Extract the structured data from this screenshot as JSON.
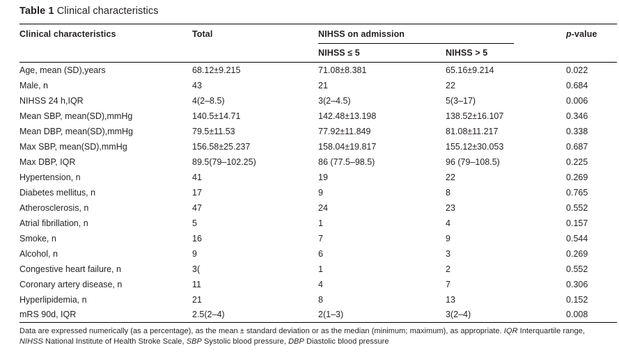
{
  "title": {
    "bold": "Table 1",
    "rest": "Clinical characteristics"
  },
  "header": {
    "col_characteristics": "Clinical characteristics",
    "col_total": "Total",
    "col_nihss_group": "NIHSS on admission",
    "col_nihss_le5": "NIHSS ≤ 5",
    "col_nihss_gt5": "NIHSS > 5",
    "col_p_italic": "p",
    "col_p_rest": "-value"
  },
  "table": {
    "rows": [
      {
        "label": "Age, mean (SD),years",
        "total": "68.12±9.215",
        "nihss_le5": "71.08±8.381",
        "nihss_gt5": "65.16±9.214",
        "p": "0.022"
      },
      {
        "label": "Male, n",
        "total": "43",
        "nihss_le5": "21",
        "nihss_gt5": "22",
        "p": "0.684"
      },
      {
        "label": "NIHSS 24 h,IQR",
        "total": "4(2–8.5)",
        "nihss_le5": "3(2–4.5)",
        "nihss_gt5": "5(3–17)",
        "p": "0.006"
      },
      {
        "label": "Mean SBP, mean(SD),mmHg",
        "total": "140.5±14.71",
        "nihss_le5": "142.48±13.198",
        "nihss_gt5": "138.52±16.107",
        "p": "0.346"
      },
      {
        "label": "Mean DBP, mean(SD),mmHg",
        "total": "79.5±11.53",
        "nihss_le5": "77.92±11.849",
        "nihss_gt5": "81.08±11.217",
        "p": "0.338"
      },
      {
        "label": "Max SBP, mean(SD),mmHg",
        "total": "156.58±25.237",
        "nihss_le5": "158.04±19.817",
        "nihss_gt5": "155.12±30.053",
        "p": "0.687"
      },
      {
        "label": "Max DBP, IQR",
        "total": "89.5(79–102.25)",
        "nihss_le5": "86 (77.5–98.5)",
        "nihss_gt5": "96 (79–108.5)",
        "p": "0.225"
      },
      {
        "label": "Hypertension, n",
        "total": "41",
        "nihss_le5": "19",
        "nihss_gt5": "22",
        "p": "0.269"
      },
      {
        "label": "Diabetes mellitus, n",
        "total": "17",
        "nihss_le5": "9",
        "nihss_gt5": "8",
        "p": "0.765"
      },
      {
        "label": "Atherosclerosis, n",
        "total": "47",
        "nihss_le5": "24",
        "nihss_gt5": "23",
        "p": "0.552"
      },
      {
        "label": "Atrial fibrillation, n",
        "total": "5",
        "nihss_le5": "1",
        "nihss_gt5": "4",
        "p": "0.157"
      },
      {
        "label": "Smoke, n",
        "total": "16",
        "nihss_le5": "7",
        "nihss_gt5": "9",
        "p": "0.544"
      },
      {
        "label": "Alcohol, n",
        "total": "9",
        "nihss_le5": "6",
        "nihss_gt5": "3",
        "p": "0.269"
      },
      {
        "label": "Congestive heart failure, n",
        "total": "3(",
        "nihss_le5": "1",
        "nihss_gt5": "2",
        "p": "0.552"
      },
      {
        "label": "Coronary artery disease, n",
        "total": "11",
        "nihss_le5": "4",
        "nihss_gt5": "7",
        "p": "0.306"
      },
      {
        "label": "Hyperlipidemia, n",
        "total": "21",
        "nihss_le5": "8",
        "nihss_gt5": "13",
        "p": "0.152"
      },
      {
        "label": "mRS 90d, IQR",
        "total": "2.5(2–4)",
        "nihss_le5": "2(1–3)",
        "nihss_gt5": "3(2–4)",
        "p": "0.008"
      }
    ]
  },
  "footnote": {
    "lines": [
      [
        {
          "text": "Data are expressed numerically (as a percentage), as the mean ± standard deviation or as the median (minimum; maximum), as appropriate. ",
          "italic": false
        },
        {
          "text": "IQR",
          "italic": true
        },
        {
          "text": " Interquartile range,",
          "italic": false
        }
      ],
      [
        {
          "text": "NIHSS",
          "italic": true
        },
        {
          "text": " National Institute of Health Stroke Scale, ",
          "italic": false
        },
        {
          "text": "SBP",
          "italic": true
        },
        {
          "text": " Systolic blood pressure, ",
          "italic": false
        },
        {
          "text": "DBP",
          "italic": true
        },
        {
          "text": " Diastolic blood pressure",
          "italic": false
        }
      ]
    ]
  },
  "colors": {
    "text": "#231f20",
    "rule": "#000000"
  }
}
